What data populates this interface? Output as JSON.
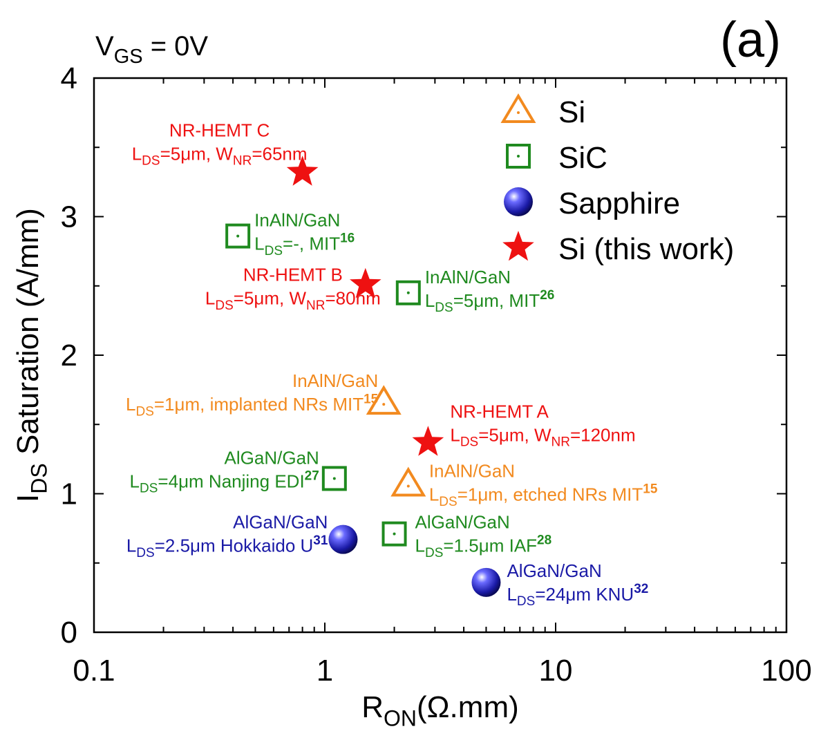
{
  "chart_data": {
    "type": "scatter",
    "panel_label": "(a)",
    "condition": {
      "main": "V",
      "sub": "GS",
      "rest": " = 0V"
    },
    "xlabel": {
      "main": "R",
      "sub": "ON",
      "rest": "(Ω.mm)"
    },
    "ylabel": {
      "main": "I",
      "sub": "DS",
      "rest": " Saturation (A/mm)"
    },
    "x_scale": "log",
    "xlim": [
      0.1,
      100
    ],
    "ylim": [
      0,
      4
    ],
    "x_ticks": [
      {
        "value": 0.1,
        "label": "0.1"
      },
      {
        "value": 1,
        "label": "1"
      },
      {
        "value": 10,
        "label": "10"
      },
      {
        "value": 100,
        "label": "100"
      }
    ],
    "y_ticks": [
      {
        "value": 0,
        "label": "0"
      },
      {
        "value": 1,
        "label": "1"
      },
      {
        "value": 2,
        "label": "2"
      },
      {
        "value": 3,
        "label": "3"
      },
      {
        "value": 4,
        "label": "4"
      }
    ],
    "grid": false,
    "legend_position": "top-right",
    "colors": {
      "Si": "#f28a1f",
      "SiC": "#1f8a1f",
      "Sapphire": "#1a1aa6",
      "Si (this work)": "#ee1111"
    },
    "legend": [
      {
        "series": "Si",
        "label": "Si"
      },
      {
        "series": "SiC",
        "label": "SiC"
      },
      {
        "series": "Sapphire",
        "label": "Sapphire"
      },
      {
        "series": "Si (this work)",
        "label": "Si (this work)"
      }
    ],
    "series": [
      {
        "name": "Si",
        "marker": "triangle",
        "points": [
          {
            "x": 1.8,
            "y": 1.66,
            "label": [
              [
                {
                  "t": "InAlN/GaN"
                }
              ],
              [
                {
                  "t": "L"
                },
                {
                  "t": "DS",
                  "s": "sub"
                },
                {
                  "t": "=1μm, implanted NRs MIT"
                },
                {
                  "t": "15",
                  "s": "sup"
                }
              ]
            ]
          },
          {
            "x": 2.3,
            "y": 1.07,
            "label": [
              [
                {
                  "t": "InAlN/GaN"
                }
              ],
              [
                {
                  "t": "L"
                },
                {
                  "t": "DS",
                  "s": "sub"
                },
                {
                  "t": "=1μm, etched NRs MIT"
                },
                {
                  "t": "15",
                  "s": "sup"
                }
              ]
            ]
          }
        ]
      },
      {
        "name": "SiC",
        "marker": "square",
        "points": [
          {
            "x": 0.42,
            "y": 2.86,
            "label": [
              [
                {
                  "t": "InAlN/GaN"
                }
              ],
              [
                {
                  "t": "L"
                },
                {
                  "t": "DS",
                  "s": "sub"
                },
                {
                  "t": "=-, MIT"
                },
                {
                  "t": "16",
                  "s": "sup"
                }
              ]
            ]
          },
          {
            "x": 2.3,
            "y": 2.45,
            "label": [
              [
                {
                  "t": "InAlN/GaN"
                }
              ],
              [
                {
                  "t": "L"
                },
                {
                  "t": "DS",
                  "s": "sub"
                },
                {
                  "t": "=5μm, MIT"
                },
                {
                  "t": "26",
                  "s": "sup"
                }
              ]
            ]
          },
          {
            "x": 1.1,
            "y": 1.11,
            "label": [
              [
                {
                  "t": "AlGaN/GaN"
                }
              ],
              [
                {
                  "t": "L"
                },
                {
                  "t": "DS",
                  "s": "sub"
                },
                {
                  "t": "=4μm Nanjing EDI"
                },
                {
                  "t": "27",
                  "s": "sup"
                }
              ]
            ]
          },
          {
            "x": 2.0,
            "y": 0.71,
            "label": [
              [
                {
                  "t": "AlGaN/GaN"
                }
              ],
              [
                {
                  "t": "L"
                },
                {
                  "t": "DS",
                  "s": "sub"
                },
                {
                  "t": "=1.5μm IAF"
                },
                {
                  "t": "28",
                  "s": "sup"
                }
              ]
            ]
          }
        ]
      },
      {
        "name": "Sapphire",
        "marker": "sphere",
        "points": [
          {
            "x": 1.2,
            "y": 0.67,
            "label": [
              [
                {
                  "t": "AlGaN/GaN"
                }
              ],
              [
                {
                  "t": "L"
                },
                {
                  "t": "DS",
                  "s": "sub"
                },
                {
                  "t": "=2.5μm Hokkaido U"
                },
                {
                  "t": "31",
                  "s": "sup"
                }
              ]
            ]
          },
          {
            "x": 5.0,
            "y": 0.36,
            "label": [
              [
                {
                  "t": "AlGaN/GaN"
                }
              ],
              [
                {
                  "t": "L"
                },
                {
                  "t": "DS",
                  "s": "sub"
                },
                {
                  "t": "=24μm KNU"
                },
                {
                  "t": "32",
                  "s": "sup"
                }
              ]
            ]
          }
        ]
      },
      {
        "name": "Si (this work)",
        "marker": "star",
        "points": [
          {
            "x": 0.8,
            "y": 3.32,
            "label": [
              [
                {
                  "t": "NR-HEMT C"
                }
              ],
              [
                {
                  "t": "L"
                },
                {
                  "t": "DS",
                  "s": "sub"
                },
                {
                  "t": "=5μm, W"
                },
                {
                  "t": "NR",
                  "s": "sub"
                },
                {
                  "t": "=65nm"
                }
              ]
            ]
          },
          {
            "x": 1.5,
            "y": 2.51,
            "label": [
              [
                {
                  "t": "NR-HEMT B"
                }
              ],
              [
                {
                  "t": "L"
                },
                {
                  "t": "DS",
                  "s": "sub"
                },
                {
                  "t": "=5μm, W"
                },
                {
                  "t": "NR",
                  "s": "sub"
                },
                {
                  "t": "=80nm"
                }
              ]
            ]
          },
          {
            "x": 2.8,
            "y": 1.37,
            "label": [
              [
                {
                  "t": "NR-HEMT A"
                }
              ],
              [
                {
                  "t": "L"
                },
                {
                  "t": "DS",
                  "s": "sub"
                },
                {
                  "t": "=5μm, W"
                },
                {
                  "t": "NR",
                  "s": "sub"
                },
                {
                  "t": "=120nm"
                }
              ]
            ]
          }
        ]
      }
    ]
  }
}
